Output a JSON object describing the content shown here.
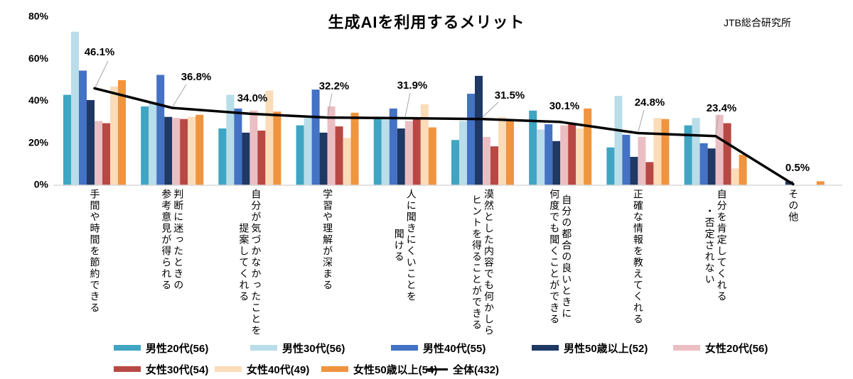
{
  "title": "生成AIを利用するメリット",
  "credit": "JTB総合研究所",
  "chart_data": {
    "type": "bar",
    "title": "生成AIを利用するメリット",
    "grid": false,
    "legend_position": "bottom",
    "ylim": [
      0,
      80
    ],
    "yticks": [
      0,
      20,
      40,
      60,
      80
    ],
    "ytick_suffix": "%",
    "categories": [
      [
        "手間や時間を節約できる"
      ],
      [
        "判断に迷ったときの",
        "参考意見が得られる"
      ],
      [
        "自分が気づかなかったことを",
        "提案してくれる"
      ],
      [
        "学習や理解が深まる"
      ],
      [
        "人に聞きにくいことを",
        "聞ける"
      ],
      [
        "漠然とした内容でも何かしら",
        "ヒントを得ることができる"
      ],
      [
        "自分の都合の良いときに",
        "何度でも聞くことができる"
      ],
      [
        "正確な情報を教えてくれる"
      ],
      [
        "自分を肯定してくれる",
        "・否定されない"
      ],
      [
        "その他"
      ]
    ],
    "series": [
      {
        "name": "男性20代(56)",
        "color": "#3FA5C2",
        "values": [
          43,
          37.5,
          27,
          28.5,
          32,
          21.5,
          35.5,
          18,
          28.5,
          0
        ]
      },
      {
        "name": "男性30代(56)",
        "color": "#B9DDE9",
        "values": [
          73,
          39.5,
          43,
          32,
          32,
          30.5,
          26.5,
          42.5,
          32,
          0
        ]
      },
      {
        "name": "男性40代(55)",
        "color": "#4472C4",
        "values": [
          54.5,
          52.5,
          36.5,
          45.5,
          36.5,
          43.5,
          29,
          24,
          20,
          0
        ]
      },
      {
        "name": "男性50歳以上(52)",
        "color": "#1F3864",
        "values": [
          40.5,
          32.5,
          25,
          25,
          27,
          52,
          21,
          13.5,
          17.5,
          1.9
        ]
      },
      {
        "name": "女性20代(56)",
        "color": "#EBBEC3",
        "values": [
          30.5,
          32,
          35.5,
          37.5,
          30.5,
          23,
          28.5,
          23,
          33.5,
          0
        ]
      },
      {
        "name": "女性30代(54)",
        "color": "#B84843",
        "values": [
          29.5,
          31.5,
          26,
          28,
          31.5,
          18.5,
          29.5,
          11,
          29.5,
          0
        ]
      },
      {
        "name": "女性40代(49)",
        "color": "#FBDCB9",
        "values": [
          47,
          32.5,
          45,
          22.5,
          38.5,
          32.5,
          27,
          32,
          8,
          0
        ]
      },
      {
        "name": "女性50歳以上(54)",
        "color": "#F0943F",
        "values": [
          50,
          33.5,
          35,
          34.5,
          27.5,
          31.5,
          36.5,
          31.5,
          14.5,
          1.9
        ]
      }
    ],
    "line_series": {
      "name": "全体(432)",
      "color": "#000000",
      "values": [
        46.1,
        36.8,
        34.0,
        32.2,
        31.9,
        31.5,
        30.1,
        24.8,
        23.4,
        0.5
      ],
      "labels": [
        "46.1%",
        "36.8%",
        "34.0%",
        "32.2%",
        "31.9%",
        "31.5%",
        "30.1%",
        "24.8%",
        "23.4%",
        "0.5%"
      ]
    },
    "legend_rows": [
      [
        "男性20代(56)",
        "男性30代(56)",
        "男性40代(55)",
        "男性50歳以上(52)",
        "女性20代(56)"
      ],
      [
        "女性30代(54)",
        "女性40代(49)",
        "女性50歳以上(54)",
        "全体(432)"
      ]
    ]
  }
}
